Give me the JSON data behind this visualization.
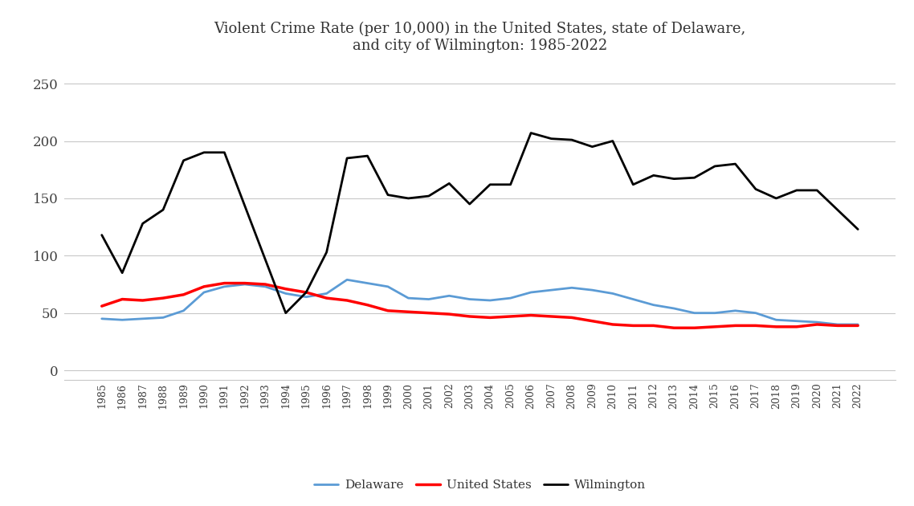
{
  "years": [
    1985,
    1986,
    1987,
    1988,
    1989,
    1990,
    1991,
    1992,
    1993,
    1994,
    1995,
    1996,
    1997,
    1998,
    1999,
    2000,
    2001,
    2002,
    2003,
    2004,
    2005,
    2006,
    2007,
    2008,
    2009,
    2010,
    2011,
    2012,
    2013,
    2014,
    2015,
    2016,
    2017,
    2018,
    2019,
    2020,
    2021,
    2022
  ],
  "delaware": [
    45,
    44,
    45,
    46,
    52,
    68,
    73,
    75,
    73,
    67,
    64,
    67,
    79,
    76,
    73,
    63,
    62,
    65,
    62,
    61,
    63,
    68,
    70,
    72,
    70,
    67,
    62,
    57,
    54,
    50,
    50,
    52,
    50,
    44,
    43,
    42,
    40,
    40
  ],
  "us": [
    56,
    62,
    61,
    63,
    66,
    73,
    76,
    76,
    75,
    71,
    68,
    63,
    61,
    57,
    52,
    51,
    50,
    49,
    47,
    46,
    47,
    48,
    47,
    46,
    43,
    40,
    39,
    39,
    37,
    37,
    38,
    39,
    39,
    38,
    38,
    40,
    39,
    39
  ],
  "wilmington_years": [
    1985,
    1986,
    1987,
    1988,
    1989,
    1990,
    1991,
    1994,
    1995,
    1996,
    1997,
    1998,
    1999,
    2000,
    2001,
    2002,
    2003,
    2004,
    2005,
    2006,
    2007,
    2008,
    2009,
    2010,
    2011,
    2012,
    2013,
    2014,
    2015,
    2016,
    2017,
    2018,
    2019,
    2020,
    2021,
    2022
  ],
  "wilmington": [
    118,
    85,
    128,
    140,
    183,
    190,
    190,
    50,
    68,
    103,
    185,
    187,
    153,
    150,
    152,
    163,
    145,
    162,
    162,
    207,
    202,
    201,
    195,
    200,
    162,
    170,
    167,
    168,
    178,
    180,
    158,
    150,
    157,
    157,
    140,
    123
  ],
  "title_line1": "Violent Crime Rate (per 10,000) in the United States, state of Delaware,",
  "title_line2": "and city of Wilmington: 1985-2022",
  "delaware_color": "#5B9BD5",
  "us_color": "#FF0000",
  "wilmington_color": "#000000",
  "background_color": "#FFFFFF",
  "grid_color": "#C8C8C8",
  "yticks": [
    0,
    50,
    100,
    150,
    200,
    250
  ],
  "ylim": [
    -8,
    270
  ],
  "legend_labels": [
    "Delaware",
    "United States",
    "Wilmington"
  ]
}
